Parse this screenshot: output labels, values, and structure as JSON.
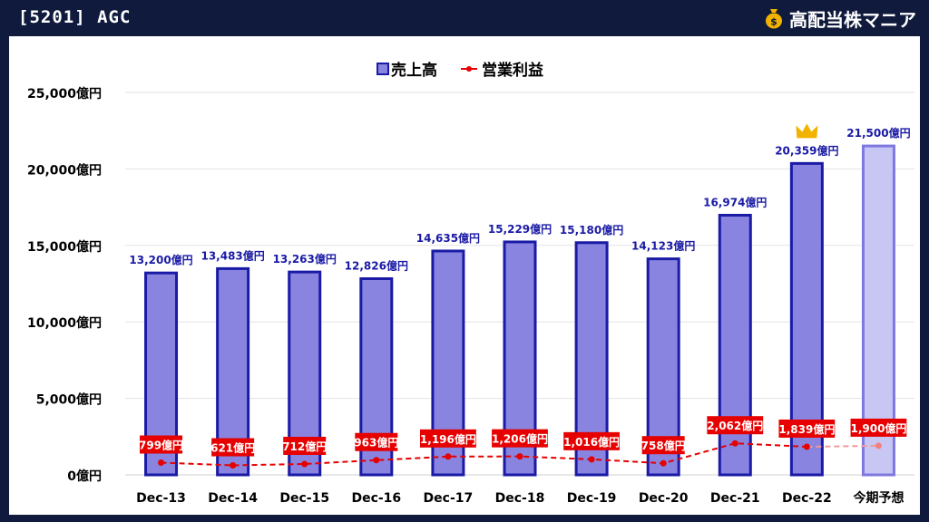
{
  "header": {
    "title": "[5201] AGC",
    "brand": "高配当株マニア",
    "brand_icon": "money-bag-icon"
  },
  "chart_data": {
    "type": "bar",
    "categories": [
      "Dec-13",
      "Dec-14",
      "Dec-15",
      "Dec-16",
      "Dec-17",
      "Dec-18",
      "Dec-19",
      "Dec-20",
      "Dec-21",
      "Dec-22",
      "今期予想"
    ],
    "series": [
      {
        "name": "売上高",
        "kind": "bar",
        "values": [
          13200,
          13483,
          13263,
          12826,
          14635,
          15229,
          15180,
          14123,
          16974,
          20359,
          21500
        ],
        "labels": [
          "13,200億円",
          "13,483億円",
          "13,263億円",
          "12,826億円",
          "14,635億円",
          "15,229億円",
          "15,180億円",
          "14,123億円",
          "16,974億円",
          "20,359億円",
          "21,500億円"
        ]
      },
      {
        "name": "営業利益",
        "kind": "line",
        "values": [
          799,
          621,
          712,
          963,
          1196,
          1206,
          1016,
          758,
          2062,
          1839,
          1900
        ],
        "labels": [
          "799億円",
          "621億円",
          "712億円",
          "963億円",
          "1,196億円",
          "1,206億円",
          "1,016億円",
          "758億円",
          "2,062億円",
          "1,839億円",
          "1,900億円"
        ]
      }
    ],
    "yticks": [
      "0億円",
      "5,000億円",
      "10,000億円",
      "15,000億円",
      "20,000億円",
      "25,000億円"
    ],
    "ylim": [
      0,
      25000
    ],
    "highlight": {
      "category": "Dec-22",
      "icon": "crown-icon"
    },
    "forecast_category": "今期予想",
    "legend_position": "top-center",
    "grid": true,
    "colors": {
      "bar_fill": "#8884e0",
      "bar_stroke": "#1a1aa6",
      "forecast_fill": "#c8c6f2",
      "forecast_stroke": "#7e78e0",
      "line": "#e60000",
      "label_blue": "#1a1aa6",
      "crown": "#f2b300"
    }
  }
}
